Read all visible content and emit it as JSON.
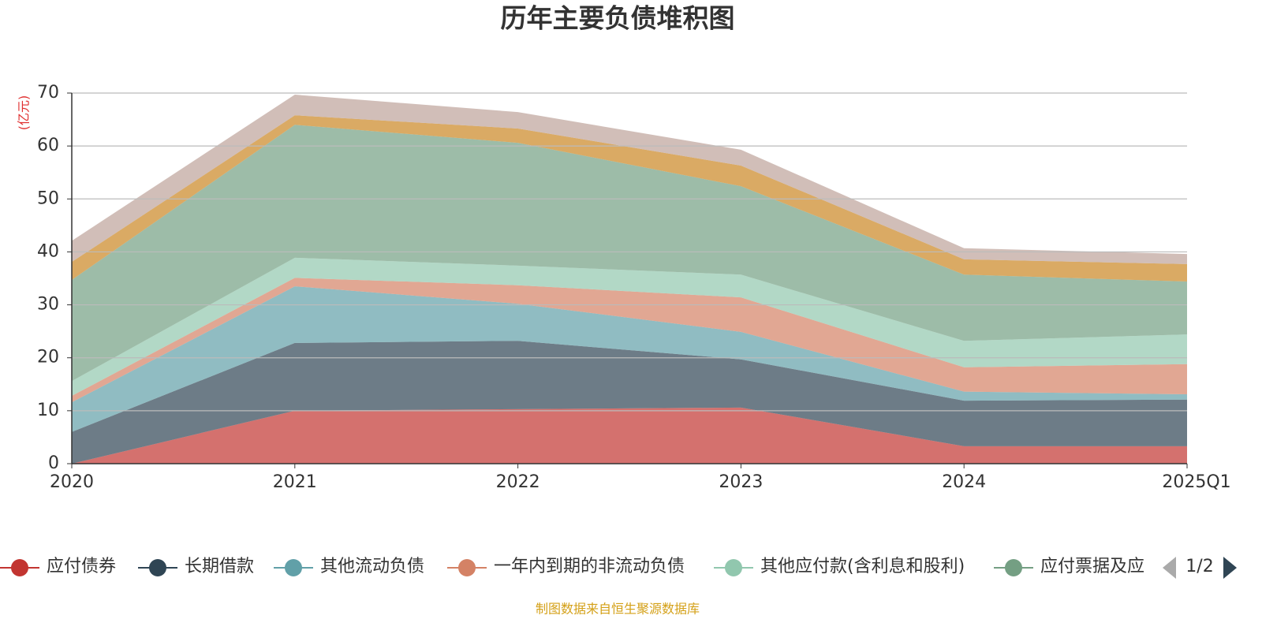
{
  "chart_data": {
    "type": "stacked_area",
    "title": "历年主要负债堆积图",
    "y_unit_label": "(亿元)",
    "categories": [
      "2020",
      "2021",
      "2022",
      "2023",
      "2024",
      "2025Q1"
    ],
    "series": [
      {
        "name": "应付债券",
        "color": "#c23531",
        "values": [
          0,
          10,
          10.3,
          10.6,
          3.3,
          3.3
        ]
      },
      {
        "name": "长期借款",
        "color": "#2f4554",
        "values": [
          6.0,
          12.8,
          12.9,
          9.1,
          8.6,
          8.8
        ]
      },
      {
        "name": "其他流动负债",
        "color": "#61a0a8",
        "values": [
          5.6,
          10.7,
          7.0,
          5.2,
          1.7,
          1.0
        ]
      },
      {
        "name": "一年内到期的非流动负债",
        "color": "#d48265",
        "values": [
          1.2,
          1.6,
          3.5,
          6.5,
          4.6,
          5.7
        ]
      },
      {
        "name": "其他应付款(含利息和股利)",
        "color": "#91c7ae",
        "values": [
          2.8,
          3.8,
          3.7,
          4.3,
          5.0,
          5.6
        ]
      },
      {
        "name": "应付票据及应",
        "color": "#749f83",
        "values": [
          19.1,
          25.1,
          23.2,
          16.7,
          12.5,
          10.0
        ]
      },
      {
        "color": "#ca8622",
        "values": [
          3.4,
          1.8,
          2.7,
          3.9,
          2.9,
          3.3
        ]
      },
      {
        "color": "#bda29a",
        "values": [
          4.0,
          3.9,
          3.1,
          3.0,
          2.1,
          1.9
        ]
      }
    ],
    "ylim": [
      0,
      70
    ],
    "yticks": [
      0,
      10,
      20,
      30,
      40,
      50,
      60,
      70
    ],
    "grid": true,
    "legend_page": "1/2",
    "source": "制图数据来自恒生聚源数据库"
  }
}
